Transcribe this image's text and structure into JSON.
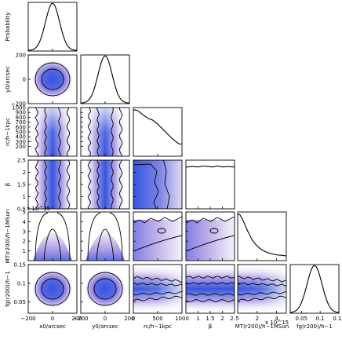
{
  "chart_data": {
    "type": "corner",
    "parameters": [
      {
        "key": "x0",
        "axis_label": "x0/arcsec",
        "range": [
          -200,
          200
        ],
        "ticks": [
          -200,
          0,
          200
        ],
        "tick_labels": [
          "−200",
          "0",
          "200"
        ]
      },
      {
        "key": "y0",
        "axis_label": "y0/arcsec",
        "range": [
          -200,
          200
        ],
        "ticks": [
          -200,
          0,
          200
        ],
        "tick_labels": [
          "−200",
          "0",
          "200"
        ]
      },
      {
        "key": "rc",
        "axis_label": "rc/h−1kpc",
        "range": [
          0,
          1000
        ],
        "ticks": [
          0,
          500,
          1000
        ],
        "tick_labels": [
          "0",
          "500",
          "1000"
        ],
        "y_ticks": [
          200,
          300,
          400,
          500,
          600,
          700,
          800,
          900,
          1000
        ],
        "y_tick_labels": [
          "200",
          "300",
          "400",
          "500",
          "600",
          "700",
          "800",
          "900",
          "1000"
        ]
      },
      {
        "key": "beta",
        "axis_label": "β",
        "range": [
          0.5,
          2.5
        ],
        "ticks": [
          1,
          1.5,
          2,
          2.5
        ],
        "tick_labels": [
          "1",
          "1.5",
          "2",
          "2.5"
        ],
        "y_ticks": [
          0.5,
          1,
          1.5,
          2,
          2.5
        ],
        "y_tick_labels": [
          "0.5",
          "1",
          "1.5",
          "2",
          "2.5"
        ]
      },
      {
        "key": "mt",
        "axis_label": "MT(r200)/h−1MSun",
        "range": [
          0,
          5
        ],
        "ticks": [
          2,
          4
        ],
        "tick_labels": [
          "2",
          "4"
        ],
        "y_ticks": [
          1,
          2,
          3,
          4,
          5
        ],
        "y_tick_labels": [
          "1",
          "2",
          "3",
          "4",
          "5"
        ],
        "exponent_label": "x 10^15",
        "x_exponent_label": "x 10^15"
      },
      {
        "key": "fg",
        "axis_label": "fg(r200)/h−1",
        "range": [
          0.02,
          0.15
        ],
        "ticks": [
          0.05,
          0.1,
          0.15
        ],
        "tick_labels": [
          "0.05",
          "0.1",
          "0.15"
        ],
        "y_ticks": [
          0.05,
          0.1,
          0.15
        ],
        "y_tick_labels": [
          "0.05",
          "0.1",
          "0.15"
        ]
      }
    ],
    "diagonal_ylabel": "Probability",
    "marginals": {
      "x0": {
        "shape": "gaussian",
        "mean": 0,
        "sigma": 58
      },
      "y0": {
        "shape": "gaussian",
        "mean": 0,
        "sigma": 58
      },
      "rc": {
        "shape": "declining",
        "x": [
          50,
          100,
          200,
          300,
          400,
          500,
          600,
          700,
          800,
          900,
          950
        ],
        "p": [
          0.95,
          0.93,
          0.85,
          0.78,
          0.74,
          0.66,
          0.56,
          0.46,
          0.36,
          0.28,
          0.25
        ]
      },
      "beta": {
        "shape": "flat",
        "x": [
          0.55,
          0.8,
          1.0,
          1.2,
          1.4,
          1.6,
          1.8,
          2.0,
          2.2,
          2.45
        ],
        "p": [
          0.86,
          0.87,
          0.86,
          0.88,
          0.87,
          0.86,
          0.88,
          0.86,
          0.87,
          0.86
        ]
      },
      "mt": {
        "shape": "decaying",
        "x": [
          0.2,
          0.5,
          1.0,
          1.5,
          2.0,
          2.5,
          3.0,
          3.5,
          4.0,
          4.5,
          4.9
        ],
        "p": [
          0.95,
          0.85,
          0.62,
          0.42,
          0.3,
          0.22,
          0.17,
          0.14,
          0.12,
          0.11,
          0.1
        ]
      },
      "fg": {
        "shape": "gaussian",
        "mean": 0.085,
        "sigma": 0.02
      }
    },
    "colors": {
      "density_low": "#ffffff",
      "density_mid": "#b9a8e8",
      "density_high": "#3555e0",
      "contour": "#000000"
    }
  }
}
